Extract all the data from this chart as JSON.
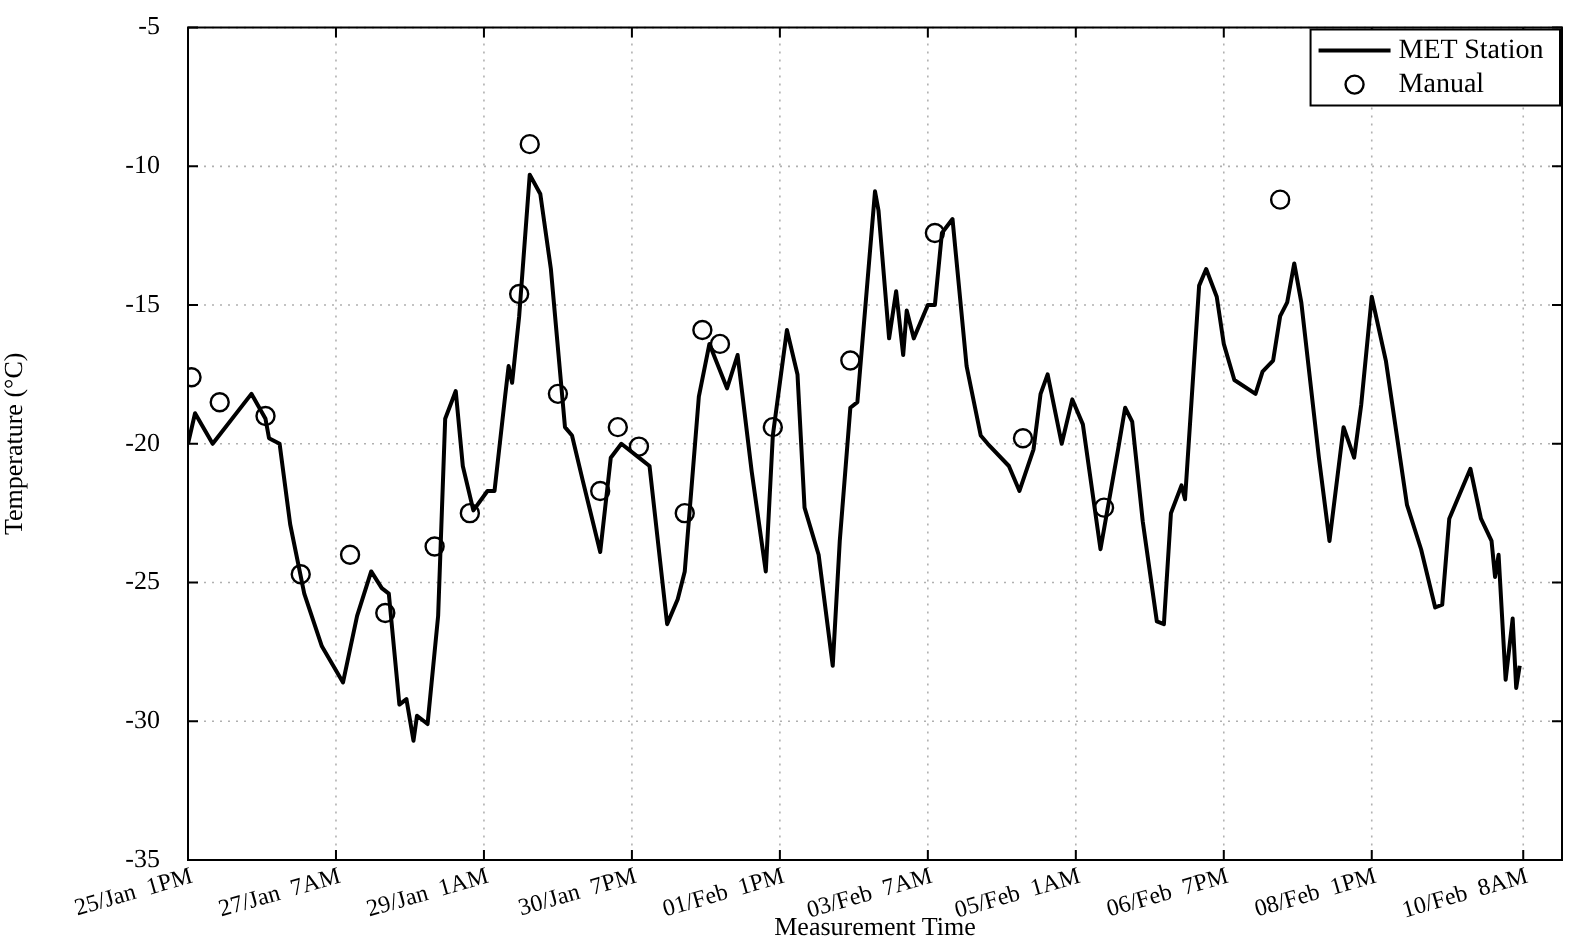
{
  "chart_data": {
    "type": "line",
    "xlabel": "Measurement Time",
    "ylabel": "Temperature (°C)",
    "xlim": [
      "--01-25T13:00",
      "--02-10T19:00"
    ],
    "ylim": [
      -35,
      -5
    ],
    "xticks": [
      {
        "value": "--01-25T13:00",
        "label": "25/Jan  1PM"
      },
      {
        "value": "--01-27T07:00",
        "label": "27/Jan  7AM"
      },
      {
        "value": "--01-29T01:00",
        "label": "29/Jan  1AM"
      },
      {
        "value": "--01-30T19:00",
        "label": "30/Jan  7PM"
      },
      {
        "value": "--02-01T13:00",
        "label": "01/Feb  1PM"
      },
      {
        "value": "--02-03T07:00",
        "label": "03/Feb  7AM"
      },
      {
        "value": "--02-05T01:00",
        "label": "05/Feb  1AM"
      },
      {
        "value": "--02-06T19:00",
        "label": "06/Feb  7PM"
      },
      {
        "value": "--02-08T13:00",
        "label": "08/Feb  1PM"
      },
      {
        "value": "--02-10T08:00",
        "label": "10/Feb  8AM"
      }
    ],
    "yticks": [
      -35,
      -30,
      -25,
      -20,
      -15,
      -10,
      -5
    ],
    "grid": true,
    "legend": "top right",
    "series": [
      {
        "name": "MET Station",
        "type": "line",
        "color": "#000000",
        "marker": "none",
        "line_style": "solid",
        "x": [
          "--01-25T13:00",
          "--01-25T15:00",
          "--01-25T20:00",
          "--01-26T07:00",
          "--01-26T11:00",
          "--01-26T12:00",
          "--01-26T15:00",
          "--01-26T18:00",
          "--01-26T22:00",
          "--01-27T03:00",
          "--01-27T09:00",
          "--01-27T13:00",
          "--01-27T17:00",
          "--01-27T20:00",
          "--01-27T22:00",
          "--01-28T01:00",
          "--01-28T03:00",
          "--01-28T05:00",
          "--01-28T06:00",
          "--01-28T09:00",
          "--01-28T12:00",
          "--01-28T14:00",
          "--01-28T17:00",
          "--01-28T19:00",
          "--01-28T22:00",
          "--01-29T02:00",
          "--01-29T04:00",
          "--01-29T07:00",
          "--01-29T08:00",
          "--01-29T09:00",
          "--01-29T11:00",
          "--01-29T14:00",
          "--01-29T17:00",
          "--01-29T20:00",
          "--01-30T00:00",
          "--01-30T02:00",
          "--01-30T05:00",
          "--01-30T10:00",
          "--01-30T13:00",
          "--01-30T16:00",
          "--01-30T21:00",
          "--01-31T00:00",
          "--01-31T05:00",
          "--01-31T08:00",
          "--01-31T10:00",
          "--01-31T14:00",
          "--01-31T17:00",
          "--01-31T22:00",
          "--02-01T01:00",
          "--02-01T05:00",
          "--02-01T09:00",
          "--02-01T11:00",
          "--02-01T15:00",
          "--02-01T18:00",
          "--02-01T20:00",
          "--02-02T00:00",
          "--02-02T04:00",
          "--02-02T06:00",
          "--02-02T09:00",
          "--02-02T11:00",
          "--02-02T16:00",
          "--02-02T17:00",
          "--02-02T20:00",
          "--02-02T22:00",
          "--02-03T00:00",
          "--02-03T01:00",
          "--02-03T03:00",
          "--02-03T07:00",
          "--02-03T09:00",
          "--02-03T11:00",
          "--02-03T14:00",
          "--02-03T18:00",
          "--02-03T22:00",
          "--02-04T00:00",
          "--02-04T06:00",
          "--02-04T09:00",
          "--02-04T13:00",
          "--02-04T15:00",
          "--02-04T17:00",
          "--02-04T21:00",
          "--02-05T00:00",
          "--02-05T03:00",
          "--02-05T08:00",
          "--02-05T13:00",
          "--02-05T15:00",
          "--02-05T17:00",
          "--02-05T20:00",
          "--02-06T00:00",
          "--02-06T02:00",
          "--02-06T04:00",
          "--02-06T07:00",
          "--02-06T08:00",
          "--02-06T12:00",
          "--02-06T14:00",
          "--02-06T17:00",
          "--02-06T19:00",
          "--02-06T22:00",
          "--02-07T04:00",
          "--02-07T06:00",
          "--02-07T09:00",
          "--02-07T11:00",
          "--02-07T13:00",
          "--02-07T15:00",
          "--02-07T17:00",
          "--02-07T22:00",
          "--02-08T01:00",
          "--02-08T05:00",
          "--02-08T08:00",
          "--02-08T10:00",
          "--02-08T13:00",
          "--02-08T17:00",
          "--02-08T23:00",
          "--02-09T03:00",
          "--02-09T07:00",
          "--02-09T09:00",
          "--02-09T11:00",
          "--02-09T17:00",
          "--02-09T20:00",
          "--02-09T23:00",
          "--02-10T00:00",
          "--02-10T01:00",
          "--02-10T03:00",
          "--02-10T05:00",
          "--02-10T06:00",
          "--02-10T07:00"
        ],
        "values": [
          -20,
          -18.9,
          -20,
          -18.2,
          -19.1,
          -19.8,
          -20,
          -22.9,
          -25.4,
          -27.3,
          -28.6,
          -26.2,
          -24.6,
          -25.2,
          -25.4,
          -29.4,
          -29.2,
          -30.7,
          -29.8,
          -30.1,
          -26.2,
          -19.1,
          -18.1,
          -20.8,
          -22.4,
          -21.7,
          -21.7,
          -18.3,
          -17.2,
          -17.8,
          -15.4,
          -10.3,
          -11,
          -13.7,
          -19.4,
          -19.7,
          -21.3,
          -23.9,
          -20.5,
          -20,
          -20.5,
          -20.8,
          -26.5,
          -25.6,
          -24.6,
          -18.3,
          -16.4,
          -18,
          -16.8,
          -21,
          -24.6,
          -19.7,
          -15.9,
          -17.5,
          -22.3,
          -24,
          -28,
          -23.5,
          -18.7,
          -18.5,
          -10.9,
          -11.6,
          -16.2,
          -14.5,
          -16.8,
          -15.2,
          -16.2,
          -15,
          -15,
          -12.4,
          -11.9,
          -17.2,
          -19.7,
          -20,
          -20.8,
          -21.7,
          -20.2,
          -18.2,
          -17.5,
          -20,
          -18.4,
          -19.3,
          -23.8,
          -20.2,
          -18.7,
          -19.2,
          -22.8,
          -26.4,
          -26.5,
          -22.5,
          -21.5,
          -22,
          -14.3,
          -13.7,
          -14.7,
          -16.4,
          -17.7,
          -18.2,
          -17.4,
          -17,
          -15.4,
          -14.9,
          -13.5,
          -14.9,
          -20.5,
          -23.5,
          -19.4,
          -20.5,
          -18.6,
          -14.7,
          -17,
          -22.2,
          -23.8,
          -25.9,
          -25.8,
          -22.7,
          -20.9,
          -22.7,
          -23.5,
          -24.8,
          -24,
          -28.5,
          -26.3,
          -28.8,
          -28
        ]
      },
      {
        "name": "Manual",
        "type": "scatter",
        "color": "#000000",
        "marker": "circle",
        "x": [
          "--01-25T14:00",
          "--01-25T22:00",
          "--01-26T11:00",
          "--01-26T21:00",
          "--01-27T11:00",
          "--01-27T21:00",
          "--01-28T11:00",
          "--01-28T21:00",
          "--01-29T11:00",
          "--01-29T14:00",
          "--01-29T22:00",
          "--01-30T10:00",
          "--01-30T15:00",
          "--01-30T21:00",
          "--01-31T10:00",
          "--01-31T15:00",
          "--01-31T20:00",
          "--02-01T11:00",
          "--02-02T09:00",
          "--02-03T09:00",
          "--02-04T10:00",
          "--02-05T09:00",
          "--02-07T11:00"
        ],
        "values": [
          -17.6,
          -18.5,
          -19,
          -24.7,
          -24,
          -26.1,
          -23.7,
          -22.5,
          -14.6,
          -9.2,
          -18.2,
          -21.7,
          -19.4,
          -20.1,
          -22.5,
          -15.9,
          -16.4,
          -19.4,
          -17,
          -12.4,
          -19.8,
          -22.3,
          -11.2
        ]
      }
    ]
  }
}
